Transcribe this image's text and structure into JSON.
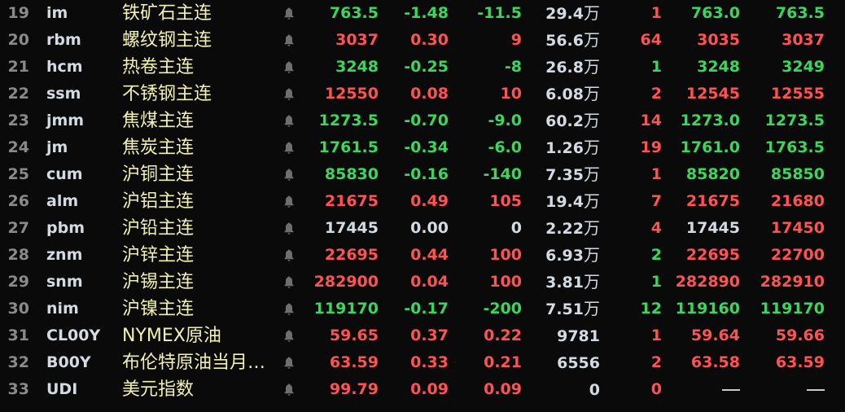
{
  "colors": {
    "up": "#ff5252",
    "down": "#3ad75c",
    "flat": "#d4dae2",
    "name": "#f2f2b0"
  },
  "bell_icon": "bell-icon",
  "rows": [
    {
      "num": "19",
      "code": "im",
      "name": "铁矿石主连",
      "price": "763.5",
      "chg": "-1.48",
      "amt": "-11.5",
      "vol": "29.4",
      "unit": "万",
      "qty": "1",
      "bid": "763.0",
      "ask": "763.5",
      "c": [
        "g",
        "g",
        "g",
        "r",
        "g",
        "g"
      ]
    },
    {
      "num": "20",
      "code": "rbm",
      "name": "螺纹钢主连",
      "price": "3037",
      "chg": "0.30",
      "amt": "9",
      "vol": "56.6",
      "unit": "万",
      "qty": "64",
      "bid": "3035",
      "ask": "3037",
      "c": [
        "r",
        "r",
        "r",
        "r",
        "r",
        "r"
      ]
    },
    {
      "num": "21",
      "code": "hcm",
      "name": "热卷主连",
      "price": "3248",
      "chg": "-0.25",
      "amt": "-8",
      "vol": "26.8",
      "unit": "万",
      "qty": "1",
      "bid": "3248",
      "ask": "3249",
      "c": [
        "g",
        "g",
        "g",
        "g",
        "g",
        "g"
      ]
    },
    {
      "num": "22",
      "code": "ssm",
      "name": "不锈钢主连",
      "price": "12550",
      "chg": "0.08",
      "amt": "10",
      "vol": "6.08",
      "unit": "万",
      "qty": "2",
      "bid": "12545",
      "ask": "12555",
      "c": [
        "r",
        "r",
        "r",
        "r",
        "r",
        "r"
      ]
    },
    {
      "num": "23",
      "code": "jmm",
      "name": "焦煤主连",
      "price": "1273.5",
      "chg": "-0.70",
      "amt": "-9.0",
      "vol": "60.2",
      "unit": "万",
      "qty": "14",
      "bid": "1273.0",
      "ask": "1273.5",
      "c": [
        "g",
        "g",
        "g",
        "r",
        "g",
        "g"
      ]
    },
    {
      "num": "24",
      "code": "jm",
      "name": "焦炭主连",
      "price": "1761.5",
      "chg": "-0.34",
      "amt": "-6.0",
      "vol": "1.26",
      "unit": "万",
      "qty": "19",
      "bid": "1761.0",
      "ask": "1763.5",
      "c": [
        "g",
        "g",
        "g",
        "r",
        "g",
        "g"
      ]
    },
    {
      "num": "25",
      "code": "cum",
      "name": "沪铜主连",
      "price": "85830",
      "chg": "-0.16",
      "amt": "-140",
      "vol": "7.35",
      "unit": "万",
      "qty": "1",
      "bid": "85820",
      "ask": "85850",
      "c": [
        "g",
        "g",
        "g",
        "r",
        "g",
        "g"
      ]
    },
    {
      "num": "26",
      "code": "alm",
      "name": "沪铝主连",
      "price": "21675",
      "chg": "0.49",
      "amt": "105",
      "vol": "19.4",
      "unit": "万",
      "qty": "7",
      "bid": "21675",
      "ask": "21680",
      "c": [
        "r",
        "r",
        "r",
        "r",
        "r",
        "r"
      ]
    },
    {
      "num": "27",
      "code": "pbm",
      "name": "沪铅主连",
      "price": "17445",
      "chg": "0.00",
      "amt": "0",
      "vol": "2.22",
      "unit": "万",
      "qty": "4",
      "bid": "17445",
      "ask": "17450",
      "c": [
        "w",
        "w",
        "w",
        "r",
        "w",
        "r"
      ]
    },
    {
      "num": "28",
      "code": "znm",
      "name": "沪锌主连",
      "price": "22695",
      "chg": "0.44",
      "amt": "100",
      "vol": "6.93",
      "unit": "万",
      "qty": "2",
      "bid": "22695",
      "ask": "22700",
      "c": [
        "r",
        "r",
        "r",
        "g",
        "r",
        "r"
      ]
    },
    {
      "num": "29",
      "code": "snm",
      "name": "沪锡主连",
      "price": "282900",
      "chg": "0.04",
      "amt": "100",
      "vol": "3.81",
      "unit": "万",
      "qty": "1",
      "bid": "282890",
      "ask": "282910",
      "c": [
        "r",
        "r",
        "r",
        "g",
        "r",
        "r"
      ]
    },
    {
      "num": "30",
      "code": "nim",
      "name": "沪镍主连",
      "price": "119170",
      "chg": "-0.17",
      "amt": "-200",
      "vol": "7.51",
      "unit": "万",
      "qty": "12",
      "bid": "119160",
      "ask": "119170",
      "c": [
        "g",
        "g",
        "g",
        "g",
        "g",
        "g"
      ]
    },
    {
      "num": "31",
      "code": "CL00Y",
      "name": "NYMEX原油",
      "price": "59.65",
      "chg": "0.37",
      "amt": "0.22",
      "vol": "9781",
      "unit": "",
      "qty": "1",
      "bid": "59.64",
      "ask": "59.66",
      "c": [
        "r",
        "r",
        "r",
        "r",
        "r",
        "r"
      ]
    },
    {
      "num": "32",
      "code": "B00Y",
      "name": "布伦特原油当月…",
      "price": "63.59",
      "chg": "0.33",
      "amt": "0.21",
      "vol": "6556",
      "unit": "",
      "qty": "2",
      "bid": "63.58",
      "ask": "63.59",
      "c": [
        "r",
        "r",
        "r",
        "r",
        "r",
        "r"
      ]
    },
    {
      "num": "33",
      "code": "UDI",
      "name": "美元指数",
      "price": "99.79",
      "chg": "0.09",
      "amt": "0.09",
      "vol": "0",
      "unit": "",
      "qty": "0",
      "bid": "—",
      "ask": "—",
      "c": [
        "r",
        "r",
        "r",
        "r",
        "w",
        "w"
      ]
    }
  ]
}
